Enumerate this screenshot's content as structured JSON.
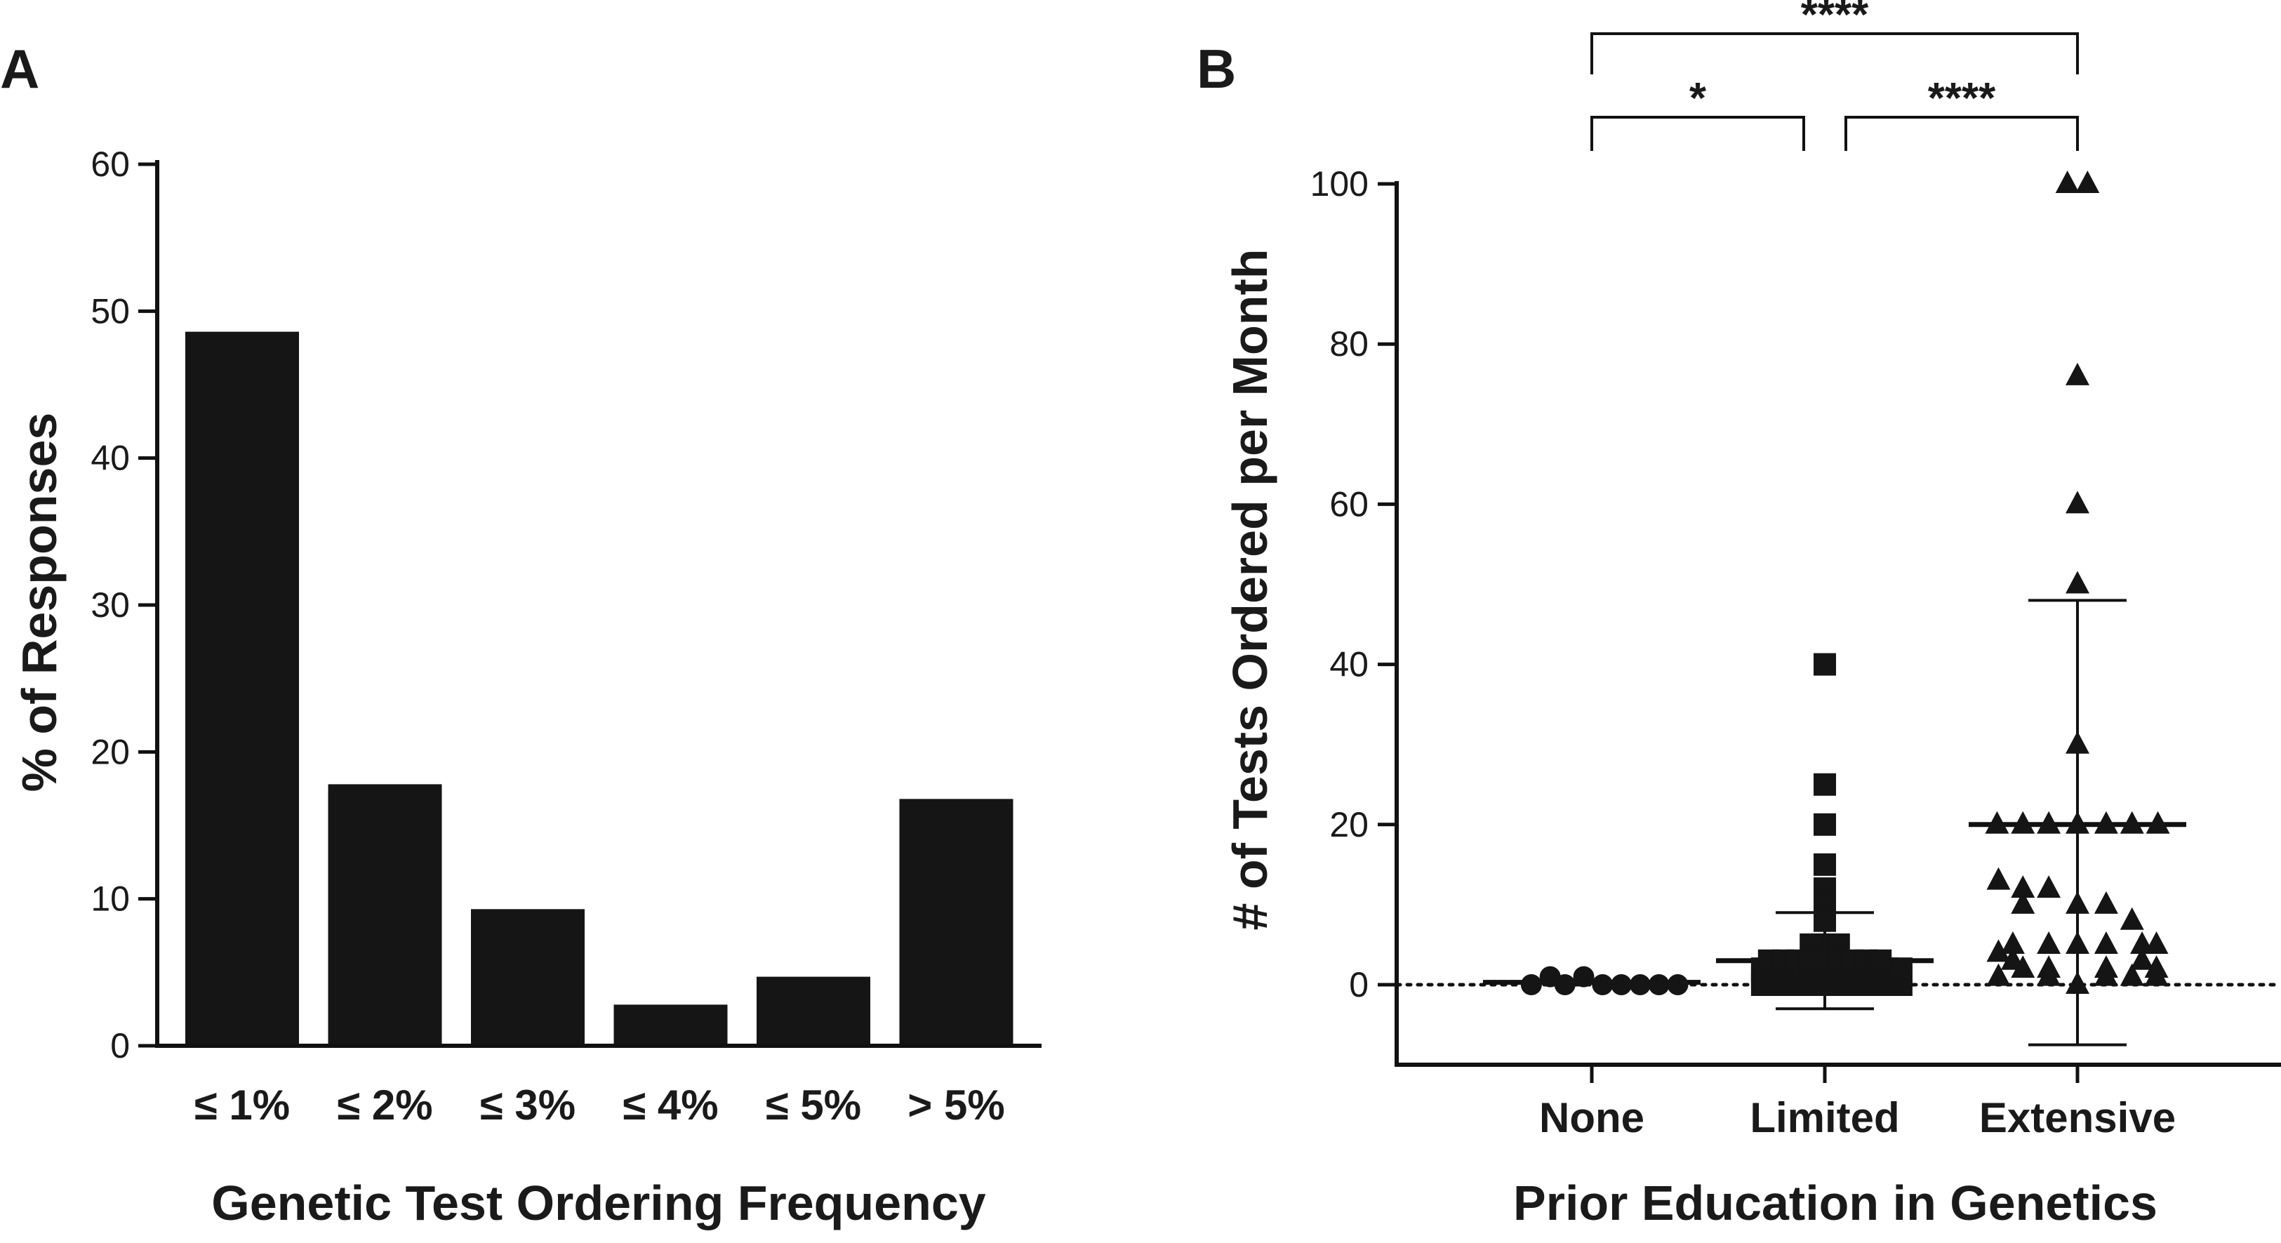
{
  "chart_data": [
    {
      "panel": "A",
      "type": "bar",
      "title": "",
      "xlabel": "Genetic Test Ordering Frequency",
      "ylabel": "% of Responses",
      "ylim": [
        0,
        60
      ],
      "yticks": [
        0,
        10,
        20,
        30,
        40,
        50,
        60
      ],
      "categories": [
        "≤ 1%",
        "≤ 2%",
        "≤ 3%",
        "≤ 4%",
        "≤ 5%",
        "> 5%"
      ],
      "values": [
        48.6,
        17.8,
        9.3,
        2.8,
        4.7,
        16.8
      ],
      "color": "#151515"
    },
    {
      "panel": "B",
      "type": "scatter",
      "title": "",
      "xlabel": "Prior Education in Genetics",
      "ylabel": "# of Tests Ordered per Month",
      "ylim": [
        -10,
        100
      ],
      "yticks": [
        0,
        20,
        40,
        60,
        80,
        100
      ],
      "reference_line": 0,
      "categories": [
        "None",
        "Limited",
        "Extensive"
      ],
      "groups": [
        {
          "name": "None",
          "marker": "circle",
          "mean": 0.3,
          "sd_low": 0.3,
          "sd_high": 0.3,
          "points": [
            [
              -0.45,
              0
            ],
            [
              -0.31,
              1
            ],
            [
              -0.2,
              0
            ],
            [
              -0.06,
              1
            ],
            [
              0.08,
              0
            ],
            [
              0.22,
              0
            ],
            [
              0.36,
              0
            ],
            [
              0.5,
              0
            ],
            [
              0.64,
              0
            ]
          ]
        },
        {
          "name": "Limited",
          "marker": "square",
          "mean": 3,
          "sd_low": -3,
          "sd_high": 9,
          "points": [
            [
              0,
              40
            ],
            [
              0,
              25
            ],
            [
              0,
              20
            ],
            [
              0,
              15
            ],
            [
              0,
              12
            ],
            [
              0,
              10
            ],
            [
              0,
              8
            ],
            [
              0,
              5
            ],
            [
              0.1,
              5
            ],
            [
              -0.1,
              5
            ],
            [
              -0.45,
              0
            ],
            [
              -0.35,
              0
            ],
            [
              -0.25,
              0
            ],
            [
              -0.15,
              0
            ],
            [
              -0.05,
              0
            ],
            [
              0.05,
              0
            ],
            [
              0.15,
              0
            ],
            [
              0.25,
              0
            ],
            [
              0.35,
              0
            ],
            [
              0.45,
              0
            ],
            [
              0.55,
              0
            ],
            [
              -0.45,
              1
            ],
            [
              -0.35,
              1
            ],
            [
              -0.25,
              1
            ],
            [
              -0.15,
              1
            ],
            [
              -0.05,
              1
            ],
            [
              0.05,
              1
            ],
            [
              0.15,
              1
            ],
            [
              0.25,
              1
            ],
            [
              0.35,
              1
            ],
            [
              0.45,
              1
            ],
            [
              0.55,
              1
            ],
            [
              -0.45,
              2
            ],
            [
              -0.35,
              2
            ],
            [
              -0.25,
              2
            ],
            [
              -0.15,
              2
            ],
            [
              -0.05,
              2
            ],
            [
              0.05,
              2
            ],
            [
              0.15,
              2
            ],
            [
              0.25,
              2
            ],
            [
              0.35,
              2
            ],
            [
              0.45,
              2
            ],
            [
              0.55,
              2
            ],
            [
              -0.4,
              3
            ],
            [
              -0.3,
              3
            ],
            [
              -0.2,
              3
            ],
            [
              -0.1,
              3
            ],
            [
              0,
              3
            ],
            [
              0.1,
              3
            ],
            [
              0.2,
              3
            ],
            [
              0.3,
              3
            ],
            [
              0.4,
              3
            ]
          ]
        },
        {
          "name": "Extensive",
          "marker": "triangle",
          "mean": 20,
          "sd_low": -7.5,
          "sd_high": 48,
          "points": [
            [
              -0.07,
              100
            ],
            [
              0.07,
              100
            ],
            [
              0,
              76
            ],
            [
              0,
              60
            ],
            [
              0,
              50
            ],
            [
              0,
              30
            ],
            [
              -0.56,
              20
            ],
            [
              -0.38,
              20
            ],
            [
              -0.2,
              20
            ],
            [
              0,
              20
            ],
            [
              0.2,
              20
            ],
            [
              0.38,
              20
            ],
            [
              0.56,
              20
            ],
            [
              -0.55,
              13
            ],
            [
              -0.38,
              12
            ],
            [
              -0.2,
              12
            ],
            [
              0,
              10
            ],
            [
              0.2,
              10
            ],
            [
              -0.38,
              10
            ],
            [
              0.38,
              8
            ],
            [
              -0.45,
              5
            ],
            [
              -0.2,
              5
            ],
            [
              0,
              5
            ],
            [
              0.2,
              5
            ],
            [
              0.45,
              5
            ],
            [
              0.55,
              5
            ],
            [
              -0.55,
              4
            ],
            [
              -0.45,
              3
            ],
            [
              -0.38,
              2
            ],
            [
              -0.2,
              2
            ],
            [
              0.2,
              2
            ],
            [
              0.45,
              3
            ],
            [
              0.55,
              2
            ],
            [
              -0.55,
              1
            ],
            [
              -0.2,
              1
            ],
            [
              0.2,
              1
            ],
            [
              0,
              0
            ],
            [
              0.38,
              1
            ],
            [
              0.55,
              1
            ]
          ]
        }
      ],
      "comparisons": [
        {
          "from": "None",
          "to": "Limited",
          "label": "*"
        },
        {
          "from": "Limited",
          "to": "Extensive",
          "label": "****"
        },
        {
          "from": "None",
          "to": "Extensive",
          "label": "****"
        }
      ]
    }
  ]
}
